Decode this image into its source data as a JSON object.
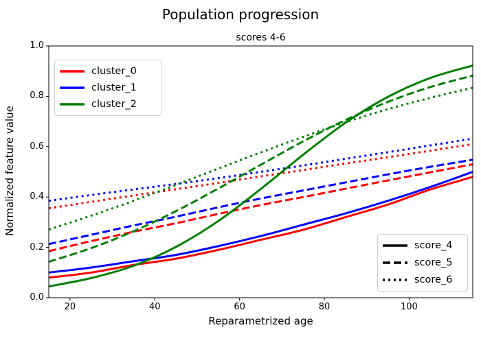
{
  "figure": {
    "title": "Population progression"
  },
  "chart_data": {
    "type": "line",
    "title": "scores 4-6",
    "xlabel": "Reparametrized age",
    "ylabel": "Normalized feature value",
    "xlim": [
      15,
      115
    ],
    "ylim": [
      0.0,
      1.0
    ],
    "grid": false,
    "xtick_labels": [
      "20",
      "40",
      "60",
      "80",
      "100"
    ],
    "ytick_labels": [
      "0.0",
      "0.2",
      "0.4",
      "0.6",
      "0.8",
      "1.0"
    ],
    "x": [
      15,
      25,
      35,
      45,
      55,
      65,
      75,
      85,
      95,
      105,
      115
    ],
    "series": [
      {
        "cluster": "cluster_0",
        "score": "score_4",
        "color": "#ff0000",
        "style": "solid",
        "values": [
          0.08,
          0.1,
          0.13,
          0.155,
          0.19,
          0.23,
          0.27,
          0.32,
          0.37,
          0.43,
          0.48
        ]
      },
      {
        "cluster": "cluster_0",
        "score": "score_5",
        "color": "#ff0000",
        "style": "dashed",
        "values": [
          0.185,
          0.225,
          0.262,
          0.296,
          0.333,
          0.368,
          0.4,
          0.433,
          0.466,
          0.498,
          0.53
        ]
      },
      {
        "cluster": "cluster_0",
        "score": "score_6",
        "color": "#ff0000",
        "style": "dotted",
        "values": [
          0.355,
          0.381,
          0.406,
          0.431,
          0.456,
          0.482,
          0.507,
          0.533,
          0.558,
          0.584,
          0.61
        ]
      },
      {
        "cluster": "cluster_1",
        "score": "score_4",
        "color": "#0000ff",
        "style": "solid",
        "values": [
          0.1,
          0.12,
          0.145,
          0.17,
          0.205,
          0.245,
          0.29,
          0.335,
          0.385,
          0.44,
          0.5
        ]
      },
      {
        "cluster": "cluster_1",
        "score": "score_5",
        "color": "#0000ff",
        "style": "dashed",
        "values": [
          0.213,
          0.25,
          0.287,
          0.322,
          0.359,
          0.394,
          0.426,
          0.458,
          0.49,
          0.52,
          0.548
        ]
      },
      {
        "cluster": "cluster_1",
        "score": "score_6",
        "color": "#0000ff",
        "style": "dotted",
        "values": [
          0.385,
          0.408,
          0.43,
          0.452,
          0.475,
          0.5,
          0.525,
          0.552,
          0.578,
          0.605,
          0.632
        ]
      },
      {
        "cluster": "cluster_2",
        "score": "score_4",
        "color": "#008000",
        "style": "solid",
        "values": [
          0.045,
          0.078,
          0.127,
          0.202,
          0.305,
          0.432,
          0.568,
          0.695,
          0.798,
          0.873,
          0.922
        ]
      },
      {
        "cluster": "cluster_2",
        "score": "score_5",
        "color": "#008000",
        "style": "dashed",
        "values": [
          0.143,
          0.197,
          0.264,
          0.344,
          0.434,
          0.528,
          0.621,
          0.706,
          0.778,
          0.837,
          0.882
        ]
      },
      {
        "cluster": "cluster_2",
        "score": "score_6",
        "color": "#008000",
        "style": "dotted",
        "values": [
          0.271,
          0.326,
          0.385,
          0.448,
          0.513,
          0.577,
          0.639,
          0.697,
          0.749,
          0.794,
          0.834
        ]
      }
    ],
    "cluster_legend": {
      "location": "upper left",
      "items": [
        {
          "label": "cluster_0",
          "color": "#ff0000"
        },
        {
          "label": "cluster_1",
          "color": "#0000ff"
        },
        {
          "label": "cluster_2",
          "color": "#008000"
        }
      ]
    },
    "score_legend": {
      "location": "lower right",
      "items": [
        {
          "label": "score_4",
          "style": "solid"
        },
        {
          "label": "score_5",
          "style": "dashed"
        },
        {
          "label": "score_6",
          "style": "dotted"
        }
      ]
    }
  }
}
